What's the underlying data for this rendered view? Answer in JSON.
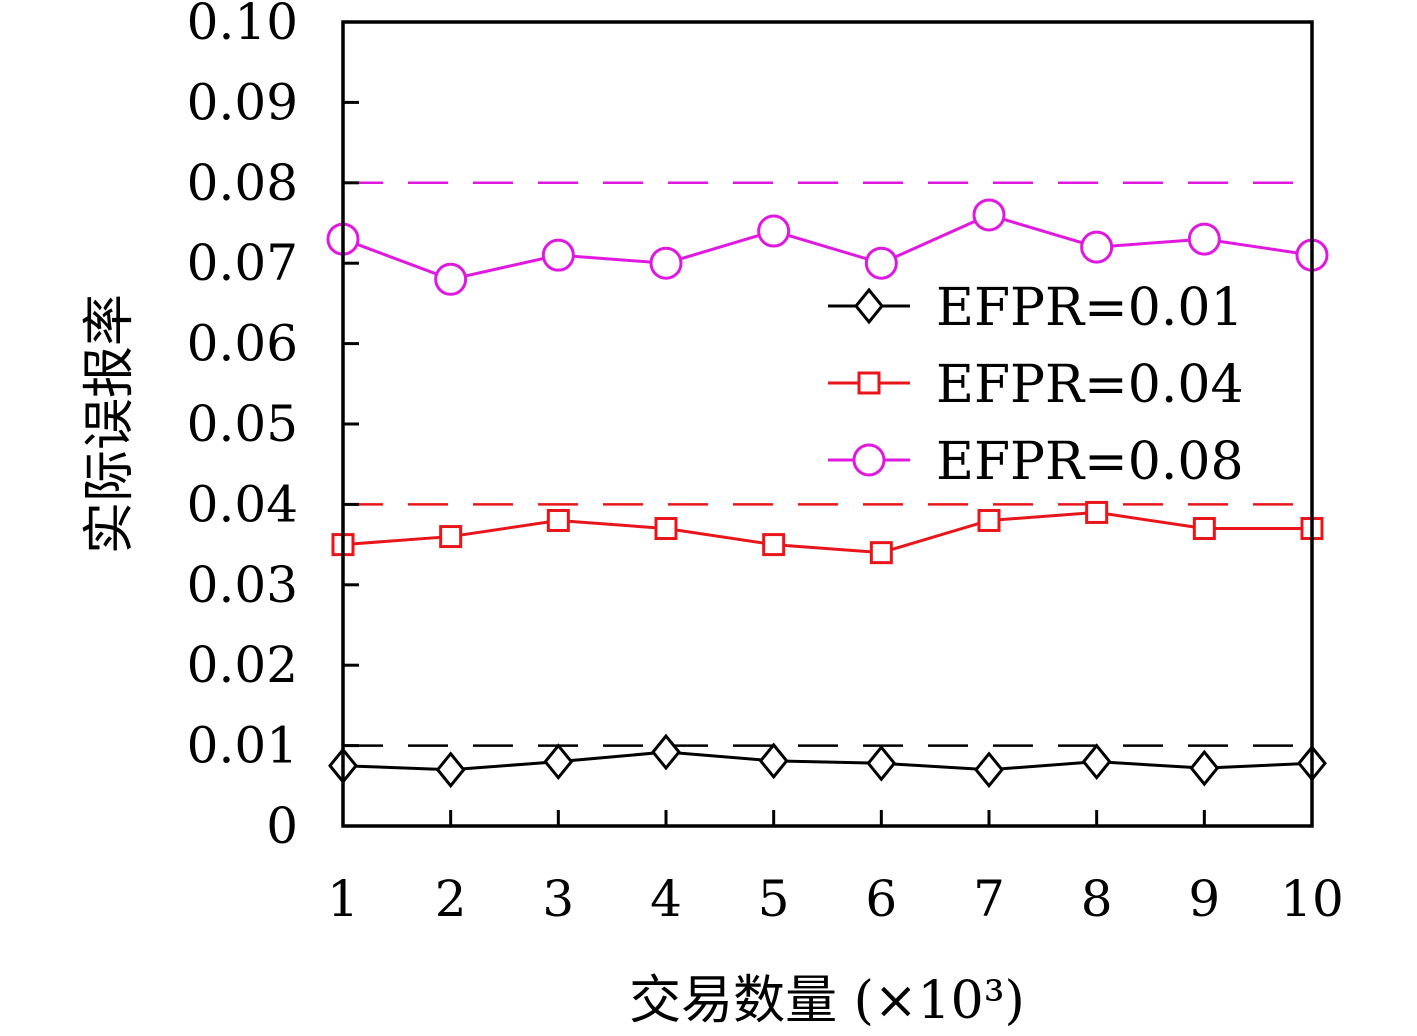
{
  "chart_data": {
    "type": "line",
    "xlabel": "交易数量 (×10³)",
    "ylabel": "实际误报率",
    "xlim": [
      1,
      10
    ],
    "ylim": [
      0,
      0.1
    ],
    "x": [
      1,
      2,
      3,
      4,
      5,
      6,
      7,
      8,
      9,
      10
    ],
    "x_tick_labels": [
      "1",
      "2",
      "3",
      "4",
      "5",
      "6",
      "7",
      "8",
      "9",
      "10"
    ],
    "y_ticks": [
      0,
      0.01,
      0.02,
      0.03,
      0.04,
      0.05,
      0.06,
      0.07,
      0.08,
      0.09,
      0.1
    ],
    "y_tick_labels": [
      "0",
      "0.01",
      "0.02",
      "0.03",
      "0.04",
      "0.05",
      "0.06",
      "0.07",
      "0.08",
      "0.09",
      "0.10"
    ],
    "grid": false,
    "legend_position": "right",
    "series": [
      {
        "name": "EFPR=0.01",
        "color": "#000000",
        "marker": "diamond",
        "values": [
          0.0075,
          0.007,
          0.008,
          0.0092,
          0.0081,
          0.0078,
          0.007,
          0.008,
          0.0072,
          0.0078
        ],
        "reference": 0.01
      },
      {
        "name": "EFPR=0.04",
        "color": "#e8161b",
        "marker": "square",
        "values": [
          0.035,
          0.036,
          0.038,
          0.037,
          0.035,
          0.034,
          0.038,
          0.039,
          0.037,
          0.037
        ],
        "reference": 0.04
      },
      {
        "name": "EFPR=0.08",
        "color": "#e018e0",
        "marker": "circle",
        "values": [
          0.073,
          0.068,
          0.071,
          0.07,
          0.074,
          0.07,
          0.076,
          0.072,
          0.073,
          0.071
        ],
        "reference": 0.08
      }
    ]
  }
}
